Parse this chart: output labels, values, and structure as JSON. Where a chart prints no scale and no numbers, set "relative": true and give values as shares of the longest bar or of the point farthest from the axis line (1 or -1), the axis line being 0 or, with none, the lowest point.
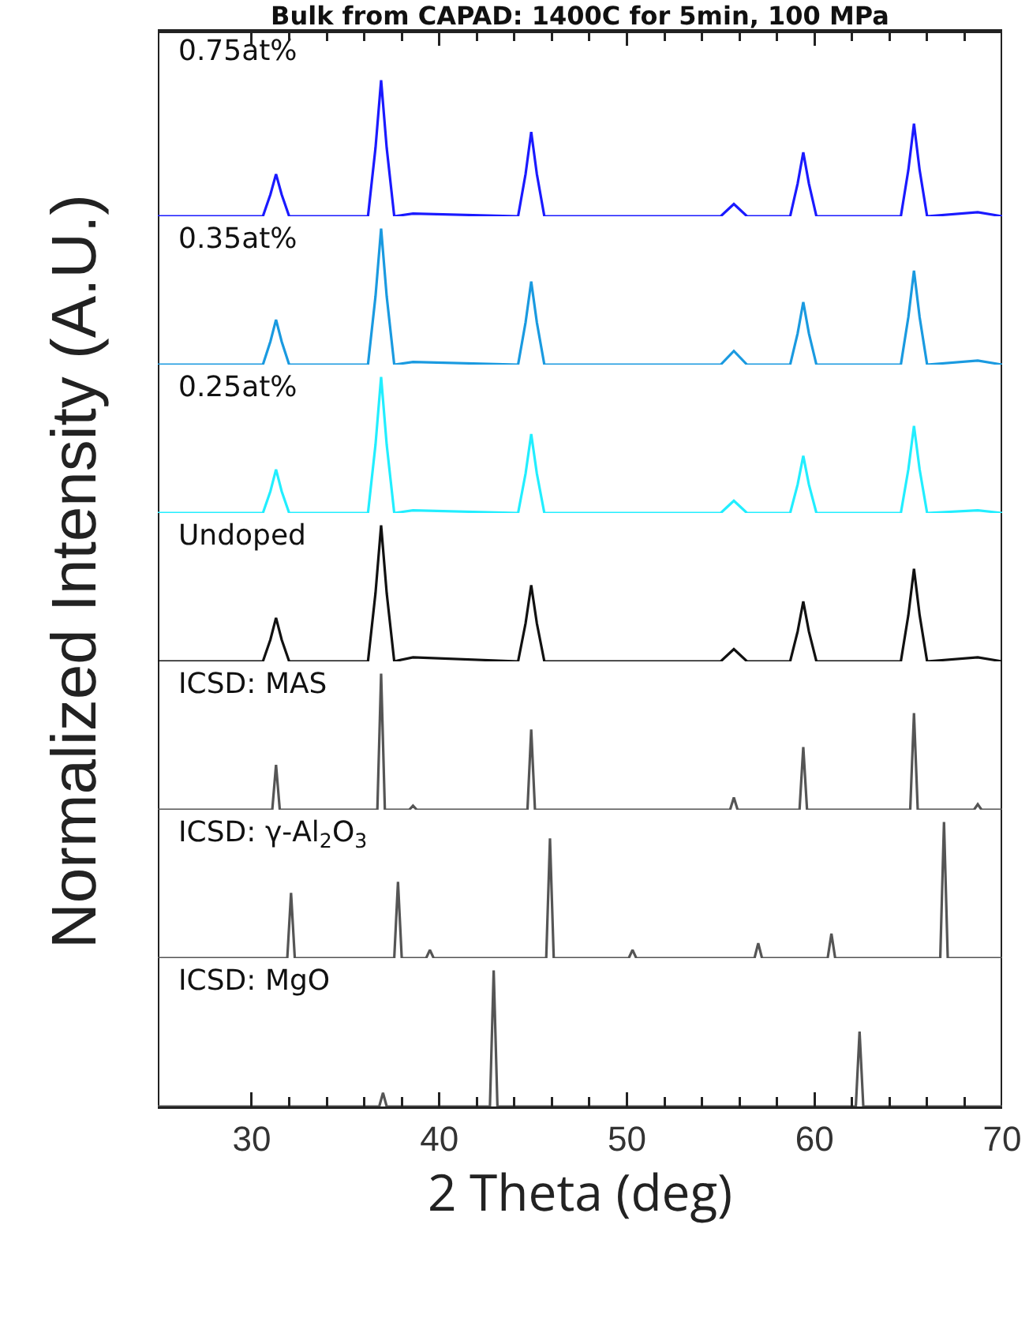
{
  "chart_data": [
    {
      "type": "line",
      "relative": true,
      "title": "Bulk from CAPAD: 1400C for 5min, 100 MPa",
      "xlim": [
        25,
        70
      ],
      "tick_labels": false,
      "x": [
        25,
        30.6,
        31.0,
        31.3,
        31.6,
        32.0,
        36.2,
        36.6,
        36.9,
        37.2,
        37.6,
        38.6,
        44.2,
        44.6,
        44.9,
        45.2,
        45.6,
        55.0,
        55.7,
        56.4,
        58.7,
        59.1,
        59.4,
        59.7,
        60.1,
        64.6,
        65.0,
        65.3,
        65.6,
        66.0,
        68.7,
        70
      ],
      "series": [
        {
          "name": "0.75at%",
          "color": "#1a1aff",
          "values": [
            0,
            0,
            0.16,
            0.31,
            0.16,
            0,
            0,
            0.5,
            1,
            0.5,
            0,
            0.02,
            0,
            0.31,
            0.62,
            0.31,
            0,
            0,
            0.09,
            0,
            0,
            0.24,
            0.47,
            0.24,
            0,
            0,
            0.34,
            0.68,
            0.34,
            0,
            0.03,
            0
          ]
        }
      ]
    },
    {
      "type": "line",
      "relative": true,
      "xlim": [
        25,
        70
      ],
      "tick_labels": false,
      "x": [
        25,
        30.6,
        31.0,
        31.3,
        31.6,
        32.0,
        36.2,
        36.6,
        36.9,
        37.2,
        37.6,
        38.6,
        44.2,
        44.6,
        44.9,
        45.2,
        45.6,
        55.0,
        55.7,
        56.4,
        58.7,
        59.1,
        59.4,
        59.7,
        60.1,
        64.6,
        65.0,
        65.3,
        65.6,
        66.0,
        68.7,
        70
      ],
      "series": [
        {
          "name": "0.35at%",
          "color": "#1a9ae0",
          "values": [
            0,
            0,
            0.17,
            0.33,
            0.17,
            0,
            0,
            0.5,
            1,
            0.5,
            0,
            0.02,
            0,
            0.31,
            0.61,
            0.31,
            0,
            0,
            0.1,
            0,
            0,
            0.23,
            0.46,
            0.23,
            0,
            0,
            0.35,
            0.69,
            0.35,
            0,
            0.03,
            0
          ]
        }
      ]
    },
    {
      "type": "line",
      "relative": true,
      "xlim": [
        25,
        70
      ],
      "tick_labels": false,
      "x": [
        25,
        30.6,
        31.0,
        31.3,
        31.6,
        32.0,
        36.2,
        36.6,
        36.9,
        37.2,
        37.6,
        38.6,
        44.2,
        44.6,
        44.9,
        45.2,
        45.6,
        55.0,
        55.7,
        56.4,
        58.7,
        59.1,
        59.4,
        59.7,
        60.1,
        64.6,
        65.0,
        65.3,
        65.6,
        66.0,
        68.7,
        70
      ],
      "series": [
        {
          "name": "0.25at%",
          "color": "#22eeff",
          "values": [
            0,
            0,
            0.16,
            0.32,
            0.16,
            0,
            0,
            0.5,
            1,
            0.5,
            0,
            0.02,
            0,
            0.29,
            0.58,
            0.29,
            0,
            0,
            0.09,
            0,
            0,
            0.21,
            0.42,
            0.21,
            0,
            0,
            0.32,
            0.64,
            0.32,
            0,
            0.02,
            0
          ]
        }
      ]
    },
    {
      "type": "line",
      "relative": true,
      "ylabel": "Normalized Intensity (A.U.)",
      "xlim": [
        25,
        70
      ],
      "tick_labels": false,
      "x": [
        25,
        30.6,
        31.0,
        31.3,
        31.6,
        32.0,
        36.2,
        36.6,
        36.9,
        37.2,
        37.6,
        38.6,
        44.2,
        44.6,
        44.9,
        45.2,
        45.6,
        55.0,
        55.7,
        56.4,
        58.7,
        59.1,
        59.4,
        59.7,
        60.1,
        64.6,
        65.0,
        65.3,
        65.6,
        66.0,
        68.7,
        70
      ],
      "series": [
        {
          "name": "Undoped",
          "color": "#111111",
          "values": [
            0,
            0,
            0.16,
            0.32,
            0.16,
            0,
            0,
            0.5,
            1,
            0.5,
            0,
            0.03,
            0,
            0.28,
            0.56,
            0.28,
            0,
            0,
            0.09,
            0,
            0,
            0.22,
            0.44,
            0.22,
            0,
            0,
            0.34,
            0.68,
            0.34,
            0,
            0.03,
            0
          ]
        }
      ]
    },
    {
      "type": "line",
      "relative": true,
      "xlim": [
        25,
        70
      ],
      "tick_labels": false,
      "x": [
        25,
        31.1,
        31.3,
        31.5,
        36.7,
        36.9,
        37.1,
        38.4,
        38.6,
        38.8,
        44.7,
        44.9,
        45.1,
        55.5,
        55.7,
        55.9,
        59.2,
        59.4,
        59.6,
        65.1,
        65.3,
        65.5,
        68.5,
        68.7,
        68.9,
        70
      ],
      "series": [
        {
          "name": "ICSD: MAS",
          "color": "#555555",
          "values": [
            0,
            0,
            0.33,
            0,
            0,
            1,
            0,
            0,
            0.03,
            0,
            0,
            0.59,
            0,
            0,
            0.09,
            0,
            0,
            0.46,
            0,
            0,
            0.71,
            0,
            0,
            0.04,
            0,
            0
          ]
        }
      ]
    },
    {
      "type": "line",
      "relative": true,
      "xlim": [
        25,
        70
      ],
      "tick_labels": false,
      "x": [
        25,
        31.9,
        32.1,
        32.3,
        37.6,
        37.8,
        38.0,
        39.3,
        39.5,
        39.7,
        45.7,
        45.9,
        46.1,
        50.1,
        50.3,
        50.5,
        56.8,
        57.0,
        57.2,
        60.7,
        60.9,
        61.1,
        66.7,
        66.9,
        67.1,
        70
      ],
      "series": [
        {
          "name": "ICSD: γ-Al$_{2}$O$_{3}$",
          "color": "#555555",
          "values": [
            0,
            0,
            0.48,
            0,
            0,
            0.56,
            0,
            0,
            0.06,
            0,
            0,
            0.88,
            0,
            0,
            0.06,
            0,
            0,
            0.11,
            0,
            0,
            0.18,
            0,
            0,
            1,
            0,
            0
          ]
        }
      ]
    },
    {
      "type": "line",
      "relative": true,
      "xlabel": "2 Theta (deg)",
      "xlim": [
        25,
        70
      ],
      "xticks": [
        30,
        {
          "value": 32,
          "label": null
        },
        {
          "value": 34,
          "label": null
        },
        {
          "value": 36,
          "label": null
        },
        {
          "value": 38,
          "label": null
        },
        40,
        {
          "value": 42,
          "label": null
        },
        {
          "value": 44,
          "label": null
        },
        {
          "value": 46,
          "label": null
        },
        {
          "value": 48,
          "label": null
        },
        50,
        {
          "value": 52,
          "label": null
        },
        {
          "value": 54,
          "label": null
        },
        {
          "value": 56,
          "label": null
        },
        {
          "value": 58,
          "label": null
        },
        60,
        {
          "value": 62,
          "label": null
        },
        {
          "value": 64,
          "label": null
        },
        {
          "value": 66,
          "label": null
        },
        {
          "value": 68,
          "label": null
        },
        70
      ],
      "tick_labels": "x",
      "x": [
        25,
        36.8,
        37.0,
        37.2,
        42.7,
        42.9,
        43.1,
        62.2,
        62.4,
        62.6,
        70
      ],
      "series": [
        {
          "name": "ICSD: MgO",
          "color": "#555555",
          "values": [
            0,
            0,
            0.1,
            0,
            0,
            1,
            0,
            0,
            0.55,
            0,
            0
          ]
        }
      ]
    }
  ]
}
